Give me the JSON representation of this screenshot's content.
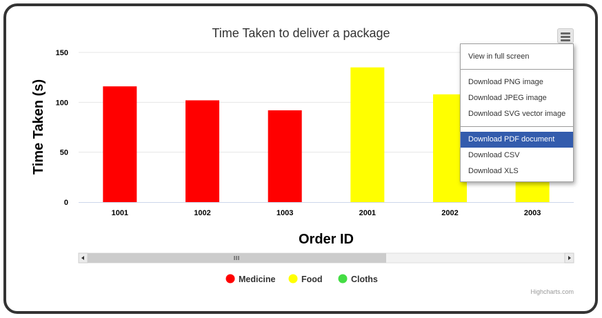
{
  "chart_data": {
    "type": "bar",
    "title": "Time Taken to deliver a package",
    "xlabel": "Order ID",
    "ylabel": "Time Taken (s)",
    "categories": [
      "1001",
      "1002",
      "1003",
      "2001",
      "2002",
      "2003"
    ],
    "values": [
      116,
      102,
      92,
      135,
      108,
      45
    ],
    "point_colors": [
      "#ff0000",
      "#ff0000",
      "#ff0000",
      "#ffff00",
      "#ffff00",
      "#ffff00"
    ],
    "ylim": [
      0,
      150
    ],
    "yticks": [
      0,
      50,
      100,
      150
    ],
    "grid": true,
    "legend": {
      "position": "bottom",
      "items": [
        {
          "label": "Medicine",
          "color": "#ff0000"
        },
        {
          "label": "Food",
          "color": "#ffff00"
        },
        {
          "label": "Cloths",
          "color": "#44dd44"
        }
      ]
    }
  },
  "scrollbar": {
    "grip_icon": "grip-lines-icon",
    "left_icon": "arrow-left-icon",
    "right_icon": "arrow-right-icon"
  },
  "credits": "Highcharts.com",
  "export_menu": {
    "icon": "hamburger-menu-icon",
    "groups": [
      [
        "View in full screen"
      ],
      [
        "Download PNG image",
        "Download JPEG image",
        "Download SVG vector image"
      ],
      [
        "Download PDF document",
        "Download CSV",
        "Download XLS"
      ]
    ],
    "active_item": "Download PDF document"
  }
}
